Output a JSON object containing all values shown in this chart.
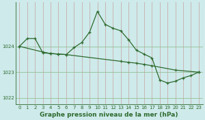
{
  "line1_x": [
    0,
    1,
    2,
    3,
    4,
    5,
    6,
    7,
    8,
    9,
    10,
    11,
    12,
    13,
    14,
    15,
    16,
    17,
    18,
    19,
    20,
    21,
    22,
    23
  ],
  "line1_y": [
    1024.0,
    1024.3,
    1024.3,
    1023.75,
    1023.72,
    1023.7,
    1023.68,
    1023.95,
    1024.15,
    1024.55,
    1025.35,
    1024.85,
    1024.7,
    1024.6,
    1024.25,
    1023.85,
    1023.7,
    1023.55,
    1022.7,
    1022.58,
    1022.65,
    1022.78,
    1022.87,
    1023.0
  ],
  "line2_x": [
    0,
    3,
    4,
    5,
    6,
    13,
    14,
    15,
    16,
    17,
    20,
    23
  ],
  "line2_y": [
    1024.0,
    1023.78,
    1023.72,
    1023.7,
    1023.68,
    1023.42,
    1023.38,
    1023.35,
    1023.3,
    1023.25,
    1023.08,
    1023.0
  ],
  "line_color": "#2d6a2d",
  "bg_color": "#ceeaea",
  "grid_color_v": "#c8a0a0",
  "grid_color_h": "#88b888",
  "xlabel": "Graphe pression niveau de la mer (hPa)",
  "xlim": [
    -0.5,
    23.5
  ],
  "ylim": [
    1021.75,
    1025.7
  ],
  "yticks": [
    1022,
    1023,
    1024
  ],
  "xticks": [
    0,
    1,
    2,
    3,
    4,
    5,
    6,
    7,
    8,
    9,
    10,
    11,
    12,
    13,
    14,
    15,
    16,
    17,
    18,
    19,
    20,
    21,
    22,
    23
  ]
}
